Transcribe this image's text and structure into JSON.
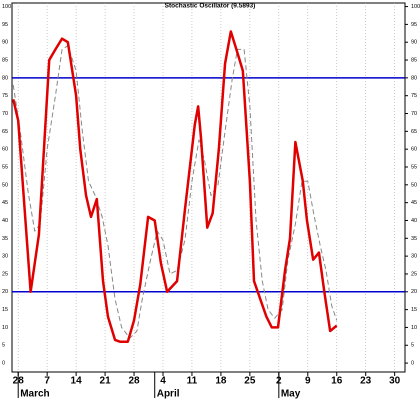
{
  "chart_data": {
    "type": "line",
    "title": "Stochastic Oscillator (9.5893)",
    "xlim": [
      -1.5,
      93.5
    ],
    "ylim": [
      -2.5,
      101
    ],
    "yticks": [
      0,
      5,
      10,
      15,
      20,
      25,
      30,
      35,
      40,
      45,
      50,
      55,
      60,
      65,
      70,
      75,
      80,
      85,
      90,
      95,
      100
    ],
    "xticks": [
      {
        "value": 0,
        "label": "28"
      },
      {
        "value": 7,
        "label": "7"
      },
      {
        "value": 14,
        "label": "14"
      },
      {
        "value": 21,
        "label": "21"
      },
      {
        "value": 28,
        "label": "28"
      },
      {
        "value": 35,
        "label": "4"
      },
      {
        "value": 42,
        "label": "11"
      },
      {
        "value": 49,
        "label": "18"
      },
      {
        "value": 56,
        "label": "25"
      },
      {
        "value": 63,
        "label": "2"
      },
      {
        "value": 70,
        "label": "9"
      },
      {
        "value": 77,
        "label": "16"
      },
      {
        "value": 84,
        "label": "23"
      },
      {
        "value": 91,
        "label": "30"
      }
    ],
    "month_labels": [
      {
        "value": 0,
        "label": "March"
      },
      {
        "value": 33,
        "label": "April"
      },
      {
        "value": 63,
        "label": "May"
      }
    ],
    "grid": true,
    "hlines": [
      {
        "value": 80,
        "color": "#0000cc"
      },
      {
        "value": 20,
        "color": "#0000cc"
      }
    ],
    "series": [
      {
        "color": "#888888",
        "style": "dashed",
        "x": [
          -1.2,
          0.5,
          2.4,
          4,
          5.3,
          7,
          9,
          10.6,
          12,
          14,
          15.5,
          17,
          18.6,
          20.3,
          21.7,
          23.4,
          25,
          27,
          28.7,
          30,
          32,
          33.6,
          35,
          36.7,
          38.4,
          40.3,
          42,
          43.7,
          45,
          46.6,
          48.3,
          50,
          51.7,
          53,
          54.6,
          56,
          57.5,
          59,
          60.4,
          62,
          63.8,
          65.2,
          67,
          68.6,
          70,
          71.5,
          73,
          74.4,
          75.8,
          77
        ],
        "values": [
          78,
          65,
          48,
          37,
          39,
          60,
          75,
          88,
          89,
          82,
          65,
          51,
          47,
          41,
          33,
          18,
          10,
          7,
          9,
          18,
          29,
          37,
          34.5,
          25,
          26,
          34.5,
          51,
          62.6,
          57,
          47,
          50,
          65,
          79.4,
          88,
          88,
          72,
          40,
          23,
          15,
          12.6,
          15,
          29,
          39,
          51,
          51,
          41.5,
          33,
          26,
          16,
          12
        ]
      },
      {
        "color": "#e00000",
        "style": "solid",
        "x": [
          -1.2,
          0,
          3,
          5,
          7.5,
          9,
          10.6,
          12,
          14,
          15,
          16.4,
          17.6,
          19,
          20.5,
          21.7,
          23.4,
          24.6,
          26.5,
          28,
          29.5,
          31.4,
          33,
          34.5,
          36,
          38.4,
          40.3,
          42.7,
          43.5,
          44.2,
          45.7,
          47,
          48.5,
          50,
          51.4,
          53,
          54.3,
          56,
          57,
          58.5,
          60,
          61.3,
          62.8,
          64.5,
          65.7,
          67,
          68.8,
          69.8,
          71.3,
          72.7,
          74,
          75.4,
          77
        ],
        "values": [
          74,
          68,
          20,
          36,
          85,
          88,
          91,
          90,
          75,
          60,
          47,
          41,
          46,
          23,
          13,
          6.5,
          6,
          6,
          12,
          22,
          41,
          40,
          28,
          20,
          23,
          43,
          67,
          72,
          63,
          38,
          42,
          60,
          84,
          93,
          87,
          82,
          51,
          23,
          18,
          13,
          10,
          10,
          26,
          35,
          62,
          51,
          40,
          29,
          31,
          20,
          9,
          10.5
        ]
      }
    ]
  }
}
